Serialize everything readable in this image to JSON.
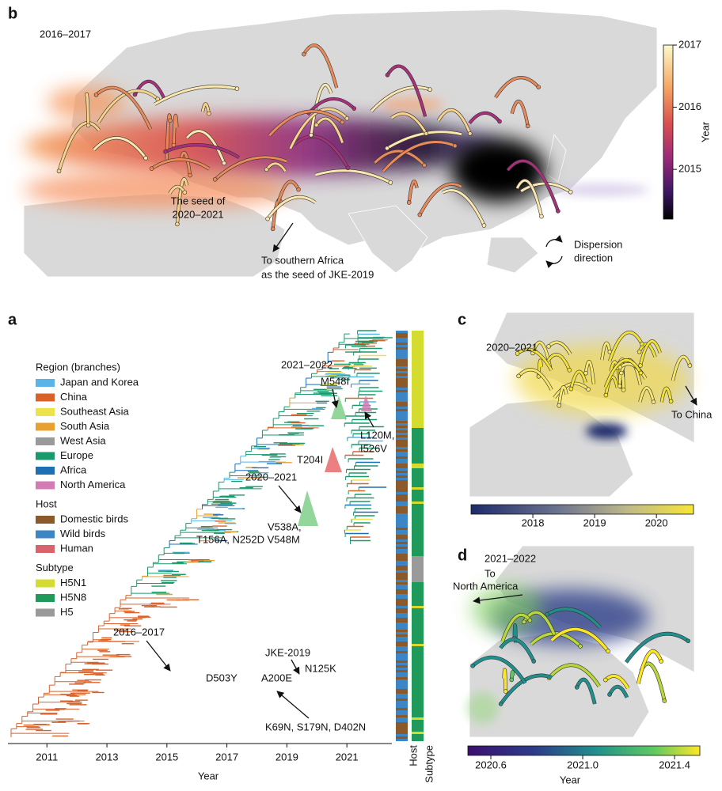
{
  "panel_b": {
    "label": "b",
    "period": "2016–2017",
    "seed_note": [
      "The seed of",
      "2020–2021"
    ],
    "africa_note": [
      "To southern Africa",
      "as the seed of JKE-2019"
    ],
    "dispersion": [
      "Dispersion",
      "direction"
    ],
    "colorbar": {
      "title": "Year",
      "lim": [
        2014.2,
        2017
      ],
      "ticks": [
        2015,
        2016,
        2017
      ]
    }
  },
  "panel_a": {
    "label": "a",
    "legend": {
      "region": {
        "title": "Region (branches)",
        "items": [
          {
            "name": "Japan and Korea",
            "color": "#5ab4e5"
          },
          {
            "name": "China",
            "color": "#d9622b"
          },
          {
            "name": "Southeast Asia",
            "color": "#ece24a"
          },
          {
            "name": "South Asia",
            "color": "#e8a030"
          },
          {
            "name": "West Asia",
            "color": "#9a9a9a"
          },
          {
            "name": "Europe",
            "color": "#1a9a6c"
          },
          {
            "name": "Africa",
            "color": "#1f6fb5"
          },
          {
            "name": "North America",
            "color": "#d47ab5"
          }
        ]
      },
      "host": {
        "title": "Host",
        "items": [
          {
            "name": "Domestic birds",
            "color": "#8b5a2b"
          },
          {
            "name": "Wild birds",
            "color": "#3d86c6"
          },
          {
            "name": "Human",
            "color": "#d9636b"
          }
        ]
      },
      "subtype": {
        "title": "Subtype",
        "items": [
          {
            "name": "H5N1",
            "color": "#d4dc2f"
          },
          {
            "name": "H5N8",
            "color": "#1f9a5a"
          },
          {
            "name": "H5",
            "color": "#9a9a9a"
          }
        ]
      }
    },
    "annotations": [
      "2021–2022",
      "M548I",
      "L120M,",
      "I526V",
      "T204I",
      "2020–2021",
      "V538A,",
      "T156A, N252D V548M",
      "2016–2017",
      "JKE-2019",
      "N125K",
      "D503Y",
      "A200E",
      "K69N, S179N, D402N"
    ],
    "column_labels": [
      "Host",
      "Subtype"
    ],
    "x_axis": {
      "title": "Year",
      "lim": [
        2009.7,
        2022.5
      ],
      "ticks": [
        2011,
        2013,
        2015,
        2017,
        2019,
        2021
      ]
    }
  },
  "panel_c": {
    "label": "c",
    "period": "2020–2021",
    "note": "To China",
    "colorbar": {
      "lim": [
        2017.0,
        2020.6
      ],
      "ticks": [
        2018,
        2019,
        2020
      ]
    }
  },
  "panel_d": {
    "label": "d",
    "period": "2021–2022",
    "note": [
      "To",
      "North America"
    ],
    "colorbar": {
      "title": "Year",
      "lim": [
        2020.5,
        2021.51
      ],
      "ticks": [
        2020.6,
        {
          "value": 2021.0,
          "label": "2021.0"
        },
        2021.4
      ]
    }
  }
}
